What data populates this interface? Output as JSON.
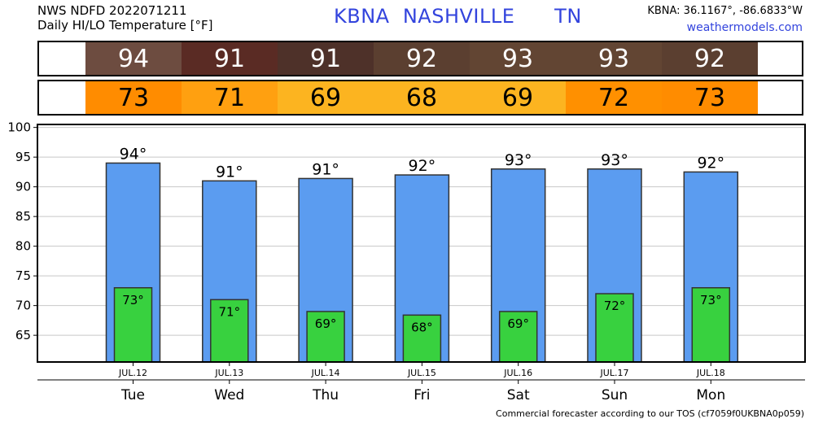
{
  "header": {
    "line1": "NWS NDFD 2022071211",
    "line2": "Daily HI/LO Temperature [°F]",
    "station_title": "KBNA  NASHVILLE      TN",
    "coords": "KBNA: 36.1167°, -86.6833°W",
    "site": "weathermodels.com"
  },
  "hi_row": [
    {
      "value": "94",
      "color": "#6d4c40"
    },
    {
      "value": "91",
      "color": "#5a2b24"
    },
    {
      "value": "91",
      "color": "#4e3129"
    },
    {
      "value": "92",
      "color": "#5b3f30"
    },
    {
      "value": "93",
      "color": "#624533"
    },
    {
      "value": "93",
      "color": "#624533"
    },
    {
      "value": "92",
      "color": "#5b3f30"
    }
  ],
  "lo_row": [
    {
      "value": "73",
      "color": "#ff8c00"
    },
    {
      "value": "71",
      "color": "#ffa010"
    },
    {
      "value": "69",
      "color": "#fcb420"
    },
    {
      "value": "68",
      "color": "#fcb420"
    },
    {
      "value": "69",
      "color": "#fcb420"
    },
    {
      "value": "72",
      "color": "#ff9000"
    },
    {
      "value": "73",
      "color": "#ff8c00"
    }
  ],
  "chart_data": {
    "type": "bar",
    "categories": [
      "Tue",
      "Wed",
      "Thu",
      "Fri",
      "Sat",
      "Sun",
      "Mon"
    ],
    "dates": [
      "JUL.12",
      "JUL.13",
      "JUL.14",
      "JUL.15",
      "JUL.16",
      "JUL.17",
      "JUL.18"
    ],
    "series": [
      {
        "values": [
          94,
          91,
          91.4,
          92,
          93,
          93,
          92.5
        ],
        "labels": [
          "94°",
          "91°",
          "91°",
          "92°",
          "93°",
          "93°",
          "92°"
        ],
        "color": "#5b9cf0"
      },
      {
        "values": [
          73,
          71,
          69,
          68.4,
          69,
          72,
          73
        ],
        "labels": [
          "73°",
          "71°",
          "69°",
          "68°",
          "69°",
          "72°",
          "73°"
        ],
        "color": "#38d13f"
      }
    ],
    "ylim": [
      60.5,
      100.5
    ],
    "yticks": [
      65,
      70,
      75,
      80,
      85,
      90,
      95,
      100
    ],
    "grid": true
  },
  "footer": "Commercial forecaster according to our TOS (cf7059f0UKBNA0p059)"
}
